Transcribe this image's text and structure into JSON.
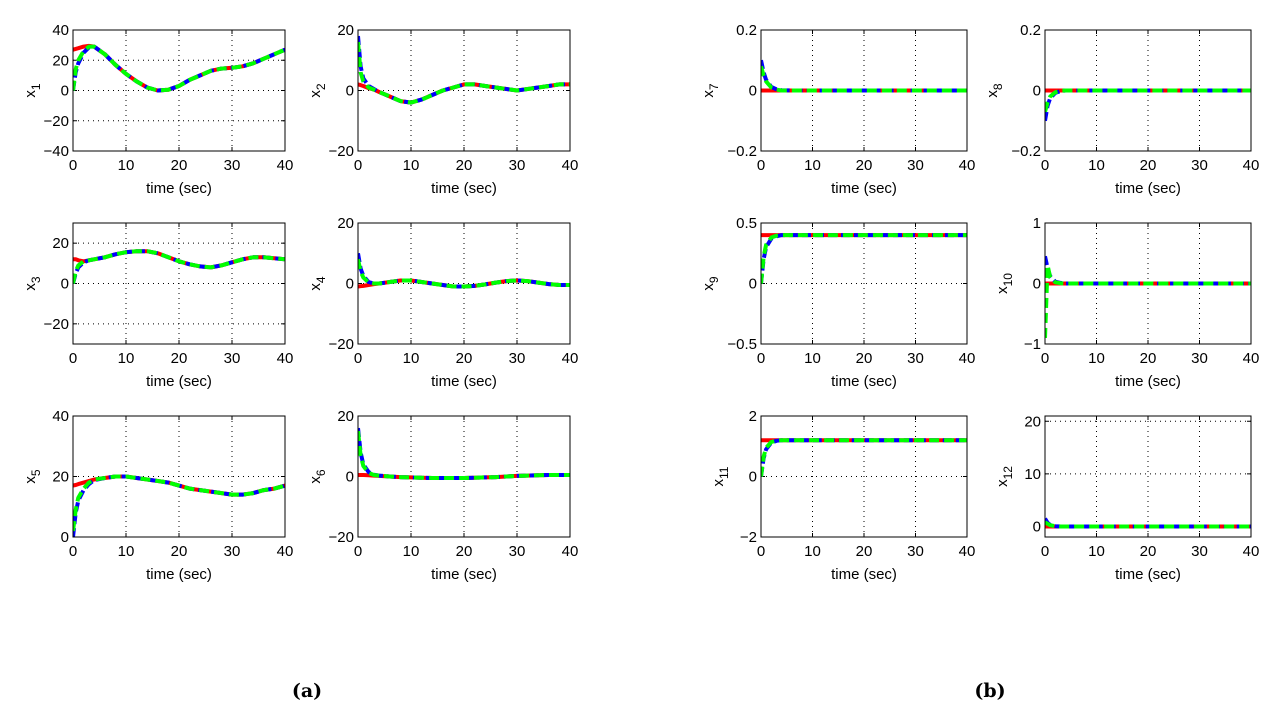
{
  "chart_data": {
    "type": "line",
    "captions": [
      "(a)",
      "(b)"
    ],
    "xlabel": "time (sec)",
    "times": [
      0,
      0.5,
      1,
      2,
      3,
      4,
      6,
      8,
      10,
      12,
      14,
      16,
      18,
      20,
      22,
      24,
      26,
      28,
      30,
      32,
      34,
      36,
      38,
      40
    ],
    "transient_times": [
      0,
      0.5,
      1,
      2,
      3,
      4
    ],
    "series_colors": {
      "red": "#ff0000",
      "blue": "#0000ff",
      "green": "#00ff00"
    },
    "xlim": [
      0,
      40
    ],
    "xticks": [
      0,
      10,
      20,
      30,
      40
    ],
    "panels": [
      {
        "ylabel_base": "x",
        "ylabel_sub": "1",
        "ylim": [
          -40,
          40
        ],
        "yticks": [
          -40,
          -20,
          0,
          20,
          40
        ],
        "ytick_labels": [
          "−40",
          "−20",
          "0",
          "20",
          "40"
        ],
        "red": [
          27,
          27.5,
          28,
          29,
          29.5,
          29,
          24,
          17,
          11,
          6,
          2,
          0,
          0.5,
          3,
          7,
          10,
          13,
          14.5,
          15,
          16,
          18,
          21,
          24,
          27
        ],
        "blue_initial": [
          0,
          12,
          18,
          25,
          28.5,
          29
        ],
        "green_initial": [
          0,
          14,
          20,
          26,
          29,
          29
        ]
      },
      {
        "ylabel_base": "x",
        "ylabel_sub": "2",
        "ylim": [
          -20,
          20
        ],
        "yticks": [
          -20,
          0,
          20
        ],
        "ytick_labels": [
          "−20",
          "0",
          "20"
        ],
        "red": [
          2,
          1.8,
          1.5,
          0.8,
          0.3,
          -0.5,
          -2,
          -3.5,
          -4,
          -3,
          -1.5,
          0,
          1,
          2,
          2,
          1.5,
          1,
          0.5,
          0,
          0.5,
          1,
          1.5,
          2,
          2
        ],
        "blue_initial": [
          18,
          8,
          4,
          1.5,
          0.5,
          -0.5
        ],
        "green_initial": [
          16,
          6,
          3,
          1,
          0.3,
          -0.5
        ]
      },
      {
        "ylabel_base": "x",
        "ylabel_sub": "3",
        "ylim": [
          -30,
          30
        ],
        "yticks": [
          -20,
          0,
          20
        ],
        "ytick_labels": [
          "−20",
          "0",
          "20"
        ],
        "red": [
          12,
          12,
          11.5,
          11,
          11.5,
          12,
          13,
          14.5,
          15.5,
          16,
          16,
          15,
          13,
          11,
          9.5,
          8.5,
          8,
          9,
          10.5,
          12,
          13,
          13,
          12.5,
          12
        ],
        "blue_initial": [
          0,
          5,
          8,
          10.5,
          11.5,
          12
        ],
        "green_initial": [
          0,
          6,
          9,
          11,
          11.5,
          12
        ]
      },
      {
        "ylabel_base": "x",
        "ylabel_sub": "4",
        "ylim": [
          -20,
          20
        ],
        "yticks": [
          -20,
          0,
          20
        ],
        "ytick_labels": [
          "−20",
          "0",
          "20"
        ],
        "red": [
          -1,
          -0.9,
          -0.8,
          -0.5,
          -0.2,
          0,
          0.5,
          1,
          1,
          0.5,
          0,
          -0.5,
          -1,
          -1,
          -0.8,
          -0.3,
          0.3,
          0.8,
          1,
          0.8,
          0.3,
          -0.2,
          -0.5,
          -0.5
        ],
        "blue_initial": [
          10,
          5,
          2.5,
          0.5,
          0,
          0
        ],
        "green_initial": [
          8,
          4,
          2,
          0.3,
          0,
          0
        ]
      },
      {
        "ylabel_base": "x",
        "ylabel_sub": "5",
        "ylim": [
          0,
          40
        ],
        "yticks": [
          0,
          20,
          40
        ],
        "ytick_labels": [
          "0",
          "20",
          "40"
        ],
        "red": [
          17,
          17.2,
          17.5,
          18,
          18.5,
          19,
          19.5,
          20,
          20,
          19.5,
          19,
          18.5,
          18,
          17,
          16,
          15.5,
          15,
          14.5,
          14,
          14,
          14.5,
          15.5,
          16,
          17
        ],
        "blue_initial": [
          0,
          8,
          12,
          15.5,
          17.5,
          18.8
        ],
        "green_initial": [
          2,
          9,
          13,
          16,
          18,
          19
        ]
      },
      {
        "ylabel_base": "x",
        "ylabel_sub": "6",
        "ylim": [
          -20,
          20
        ],
        "yticks": [
          -20,
          0,
          20
        ],
        "ytick_labels": [
          "−20",
          "0",
          "20"
        ],
        "red": [
          0.5,
          0.5,
          0.5,
          0.4,
          0.3,
          0.2,
          0,
          -0.2,
          -0.3,
          -0.4,
          -0.5,
          -0.5,
          -0.5,
          -0.5,
          -0.4,
          -0.3,
          -0.2,
          0,
          0.2,
          0.3,
          0.4,
          0.5,
          0.5,
          0.5
        ],
        "blue_initial": [
          16,
          8,
          4,
          1.5,
          0.6,
          0.3
        ],
        "green_initial": [
          15,
          7,
          3.5,
          1.2,
          0.5,
          0.3
        ]
      },
      {
        "ylabel_base": "x",
        "ylabel_sub": "7",
        "ylim": [
          -0.2,
          0.2
        ],
        "yticks": [
          -0.2,
          0,
          0.2
        ],
        "ytick_labels": [
          "−0.2",
          "0",
          "0.2"
        ],
        "red": [
          0,
          0,
          0,
          0,
          0,
          0,
          0,
          0,
          0,
          0,
          0,
          0,
          0,
          0,
          0,
          0,
          0,
          0,
          0,
          0,
          0,
          0,
          0,
          0
        ],
        "blue_initial": [
          0.1,
          0.06,
          0.035,
          0.012,
          0.004,
          0.001
        ],
        "green_initial": [
          0.08,
          0.05,
          0.03,
          0.01,
          0.003,
          0
        ]
      },
      {
        "ylabel_base": "x",
        "ylabel_sub": "8",
        "ylim": [
          -0.2,
          0.2
        ],
        "yticks": [
          -0.2,
          0,
          0.2
        ],
        "ytick_labels": [
          "−0.2",
          "0",
          "0.2"
        ],
        "red": [
          0,
          0,
          0,
          0,
          0,
          0,
          0,
          0,
          0,
          0,
          0,
          0,
          0,
          0,
          0,
          0,
          0,
          0,
          0,
          0,
          0,
          0,
          0,
          0
        ],
        "blue_initial": [
          -0.1,
          -0.05,
          -0.025,
          -0.008,
          -0.002,
          0
        ],
        "green_initial": [
          -0.07,
          -0.04,
          -0.02,
          -0.006,
          -0.001,
          0
        ]
      },
      {
        "ylabel_base": "x",
        "ylabel_sub": "9",
        "ylim": [
          -0.5,
          0.5
        ],
        "yticks": [
          -0.5,
          0,
          0.5
        ],
        "ytick_labels": [
          "−0.5",
          "0",
          "0.5"
        ],
        "red": [
          0.4,
          0.4,
          0.4,
          0.4,
          0.4,
          0.4,
          0.4,
          0.4,
          0.4,
          0.4,
          0.4,
          0.4,
          0.4,
          0.4,
          0.4,
          0.4,
          0.4,
          0.4,
          0.4,
          0.4,
          0.4,
          0.4,
          0.4,
          0.4
        ],
        "blue_initial": [
          0,
          0.2,
          0.3,
          0.37,
          0.39,
          0.4
        ],
        "green_initial": [
          0,
          0.22,
          0.32,
          0.38,
          0.395,
          0.4
        ]
      },
      {
        "ylabel_base": "x",
        "ylabel_sub": "10",
        "ylim": [
          -1,
          1
        ],
        "yticks": [
          -1,
          0,
          1
        ],
        "ytick_labels": [
          "−1",
          "0",
          "1"
        ],
        "red": [
          0,
          0,
          0,
          0,
          0,
          0,
          0,
          0,
          0,
          0,
          0,
          0,
          0,
          0,
          0,
          0,
          0,
          0,
          0,
          0,
          0,
          0,
          0,
          0
        ],
        "blue_initial": [
          0.45,
          0.25,
          0.12,
          0.03,
          0.01,
          0
        ],
        "green_initial": [
          -0.9,
          0.3,
          0.1,
          0.02,
          0.005,
          0
        ]
      },
      {
        "ylabel_base": "x",
        "ylabel_sub": "11",
        "ylim": [
          -2,
          2
        ],
        "yticks": [
          -2,
          0,
          2
        ],
        "ytick_labels": [
          "−2",
          "0",
          "2"
        ],
        "red": [
          1.2,
          1.2,
          1.2,
          1.2,
          1.2,
          1.2,
          1.2,
          1.2,
          1.2,
          1.2,
          1.2,
          1.2,
          1.2,
          1.2,
          1.2,
          1.2,
          1.2,
          1.2,
          1.2,
          1.2,
          1.2,
          1.2,
          1.2,
          1.2
        ],
        "blue_initial": [
          0,
          0.6,
          0.9,
          1.12,
          1.18,
          1.2
        ],
        "green_initial": [
          0,
          0.65,
          0.95,
          1.14,
          1.19,
          1.2
        ]
      },
      {
        "ylabel_base": "x",
        "ylabel_sub": "12",
        "ylim": [
          -2,
          21
        ],
        "yticks": [
          0,
          10,
          20
        ],
        "ytick_labels": [
          "0",
          "10",
          "20"
        ],
        "red": [
          0,
          0,
          0,
          0,
          0,
          0,
          0,
          0,
          0,
          0,
          0,
          0,
          0,
          0,
          0,
          0,
          0,
          0,
          0,
          0,
          0,
          0,
          0,
          0
        ],
        "blue_initial": [
          1.5,
          0.7,
          0.3,
          0.05,
          0,
          0
        ],
        "green_initial": [
          0.8,
          0.5,
          0.25,
          0.05,
          0,
          0
        ]
      }
    ]
  }
}
